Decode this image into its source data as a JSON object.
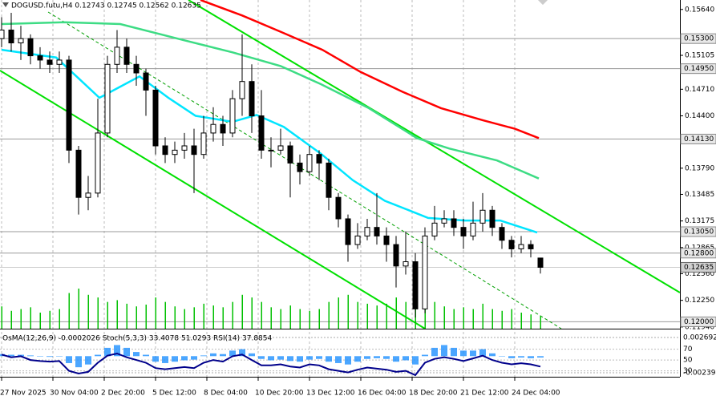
{
  "chart_data": {
    "type": "candlestick",
    "title": "DOGUSD.futu,H4  0.12743 0.12745 0.12562 0.12635",
    "x": [
      0,
      3,
      6,
      9,
      12,
      15,
      18,
      21,
      24,
      27,
      30,
      33,
      36,
      39,
      42,
      45,
      48,
      51,
      54,
      57,
      60,
      63,
      66,
      69,
      72,
      75,
      78,
      81,
      84,
      87,
      90,
      93,
      96,
      99,
      102,
      105,
      108,
      111,
      114,
      117,
      120,
      123,
      126,
      129,
      132,
      135,
      138,
      141,
      144,
      147,
      150,
      153,
      156,
      159,
      162,
      165,
      168
    ],
    "open": [
      0.153,
      0.154,
      0.1525,
      0.153,
      0.151,
      0.1505,
      0.15,
      0.1505,
      0.14,
      0.1345,
      0.135,
      0.142,
      0.15,
      0.152,
      0.15,
      0.149,
      0.147,
      0.1405,
      0.1395,
      0.14,
      0.1405,
      0.1395,
      0.142,
      0.143,
      0.142,
      0.146,
      0.148,
      0.144,
      0.14,
      0.14,
      0.1405,
      0.1385,
      0.1375,
      0.1395,
      0.1385,
      0.1345,
      0.132,
      0.129,
      0.13,
      0.131,
      0.13,
      0.129,
      0.1265,
      0.127,
      0.1215,
      0.13,
      0.1315,
      0.132,
      0.131,
      0.13,
      0.1315,
      0.133,
      0.131,
      0.1295,
      0.1285,
      0.129,
      0.12743
    ],
    "high": [
      0.1555,
      0.156,
      0.1545,
      0.1535,
      0.152,
      0.1515,
      0.1515,
      0.151,
      0.1405,
      0.137,
      0.146,
      0.151,
      0.154,
      0.153,
      0.151,
      0.1495,
      0.1475,
      0.1415,
      0.141,
      0.142,
      0.1425,
      0.144,
      0.145,
      0.144,
      0.147,
      0.1535,
      0.15,
      0.147,
      0.1415,
      0.1425,
      0.141,
      0.1395,
      0.1405,
      0.14,
      0.139,
      0.135,
      0.1325,
      0.1315,
      0.132,
      0.135,
      0.131,
      0.13,
      0.1305,
      0.128,
      0.131,
      0.1335,
      0.133,
      0.133,
      0.132,
      0.134,
      0.135,
      0.1335,
      0.1315,
      0.13,
      0.13,
      0.1295,
      0.12745
    ],
    "low": [
      0.152,
      0.1515,
      0.1505,
      0.15,
      0.1495,
      0.149,
      0.149,
      0.1385,
      0.1325,
      0.133,
      0.1345,
      0.1415,
      0.149,
      0.149,
      0.1475,
      0.144,
      0.1395,
      0.1385,
      0.1385,
      0.139,
      0.135,
      0.139,
      0.141,
      0.1405,
      0.1415,
      0.144,
      0.142,
      0.139,
      0.138,
      0.1395,
      0.1345,
      0.136,
      0.137,
      0.1365,
      0.133,
      0.131,
      0.127,
      0.1285,
      0.1295,
      0.129,
      0.127,
      0.124,
      0.1255,
      0.1205,
      0.121,
      0.1295,
      0.131,
      0.13,
      0.1285,
      0.1295,
      0.1305,
      0.13,
      0.1285,
      0.1275,
      0.128,
      0.1275,
      0.12562
    ],
    "close": [
      0.154,
      0.1525,
      0.153,
      0.151,
      0.1505,
      0.15,
      0.1505,
      0.14,
      0.1345,
      0.135,
      0.142,
      0.15,
      0.152,
      0.15,
      0.149,
      0.147,
      0.1405,
      0.1395,
      0.14,
      0.1405,
      0.1395,
      0.142,
      0.143,
      0.142,
      0.146,
      0.148,
      0.144,
      0.14,
      0.14,
      0.1405,
      0.1385,
      0.1375,
      0.1395,
      0.1385,
      0.1345,
      0.132,
      0.129,
      0.13,
      0.131,
      0.13,
      0.129,
      0.1265,
      0.127,
      0.1215,
      0.13,
      0.1315,
      0.132,
      0.131,
      0.13,
      0.1315,
      0.133,
      0.131,
      0.1295,
      0.1285,
      0.129,
      0.1285,
      0.12635
    ],
    "volume": [
      25,
      20,
      22,
      24,
      18,
      20,
      22,
      40,
      45,
      38,
      35,
      30,
      32,
      28,
      25,
      27,
      35,
      30,
      25,
      22,
      24,
      28,
      26,
      24,
      30,
      38,
      35,
      30,
      24,
      22,
      26,
      22,
      20,
      22,
      30,
      35,
      38,
      30,
      28,
      26,
      28,
      35,
      30,
      45,
      40,
      30,
      25,
      22,
      24,
      22,
      28,
      22,
      20,
      22,
      18,
      16,
      14
    ],
    "volume_color": "#00c000",
    "candle_up": "#ffffff",
    "candle_down": "#000000",
    "series": [
      {
        "color": "#ff0000",
        "x": [
          62,
          75,
          87,
          100,
          112,
          125,
          137,
          150,
          160,
          167.5
        ],
        "values": [
          0.1575,
          0.1557,
          0.1538,
          0.1517,
          0.1491,
          0.1468,
          0.1449,
          0.1435,
          0.1425,
          0.1414
        ]
      },
      {
        "color": "#3ddc84",
        "x": [
          0,
          19.5,
          37,
          57,
          72,
          87,
          99.5,
          114.5,
          129.5,
          139.5,
          154.5,
          167.5
        ],
        "values": [
          0.1547,
          0.1549,
          0.1547,
          0.1528,
          0.1514,
          0.1498,
          0.1477,
          0.1449,
          0.1414,
          0.1402,
          0.1388,
          0.1367
        ]
      },
      {
        "color": "#00e5ff",
        "x": [
          0,
          17,
          24.5,
          30.5,
          37,
          43,
          52,
          60.5,
          72,
          79.5,
          88,
          99.5,
          109.5,
          119.5,
          127,
          133,
          144.5,
          155.5,
          167
        ],
        "values": [
          0.1517,
          0.1508,
          0.1482,
          0.1461,
          0.1474,
          0.1486,
          0.1461,
          0.144,
          0.1433,
          0.1441,
          0.1427,
          0.1396,
          0.1365,
          0.1341,
          0.133,
          0.1321,
          0.1318,
          0.1318,
          0.1304
        ]
      }
    ],
    "xlim": [
      0,
      212
    ],
    "ylim": [
      0.1192,
      0.1575
    ],
    "yticks": [
      {
        "value": 0.1564,
        "label": "0.15640"
      },
      {
        "value": 0.15105,
        "label": "0.15105"
      },
      {
        "value": 0.1471,
        "label": "0.14710"
      },
      {
        "value": 0.144,
        "label": "0.14400"
      },
      {
        "value": 0.1379,
        "label": "0.13790"
      },
      {
        "value": 0.13485,
        "label": "0.13485"
      },
      {
        "value": 0.13175,
        "label": "0.13175"
      },
      {
        "value": 0.12865,
        "label": "0.12865"
      },
      {
        "value": 0.1256,
        "label": "0.12560"
      },
      {
        "value": 0.1225,
        "label": "0.12250"
      },
      {
        "value": 0.1194,
        "label": "0.11940"
      }
    ],
    "levels": [
      {
        "value": 0.153,
        "label": "0.15300"
      },
      {
        "value": 0.1495,
        "label": "0.14950"
      },
      {
        "value": 0.1413,
        "label": "0.14130"
      },
      {
        "value": 0.1305,
        "label": "0.13050"
      },
      {
        "value": 0.128,
        "label": "0.12800"
      },
      {
        "value": 0.12,
        "label": "0.12000"
      }
    ],
    "current": {
      "value": 0.12635,
      "label": "0.12635"
    },
    "xticks": [
      {
        "value": 0,
        "label": "27 Nov 2025"
      },
      {
        "value": 16,
        "label": "30 Nov 04:00"
      },
      {
        "value": 32,
        "label": "2 Dec 20:00"
      },
      {
        "value": 48,
        "label": "5 Dec 12:00"
      },
      {
        "value": 64,
        "label": "8 Dec 04:00"
      },
      {
        "value": 80,
        "label": "10 Dec 20:00"
      },
      {
        "value": 96,
        "label": "13 Dec 12:00"
      },
      {
        "value": 112,
        "label": "16 Dec 04:00"
      },
      {
        "value": 128,
        "label": "18 Dec 20:00"
      },
      {
        "value": 144,
        "label": "21 Dec 12:00"
      },
      {
        "value": 160,
        "label": "24 Dec 04:00"
      }
    ],
    "indicator": {
      "label": "OsMA(12,26,9) -0.0002026 Stoch(5,3,3) 33.4078 51.0293 RSI(14) 37.8854",
      "osma": [
        0.0003,
        0.0002,
        0.0002,
        0.0001,
        0,
        -0.0001,
        0,
        -0.001,
        -0.0016,
        -0.0012,
        0.0002,
        0.0012,
        0.0016,
        0.0012,
        0.0006,
        0.0002,
        -0.0008,
        -0.001,
        -0.0008,
        -0.0006,
        -0.0005,
        0.0001,
        0.0004,
        0.0003,
        0.0008,
        0.001,
        0.0004,
        -0.0004,
        -0.0006,
        -0.0005,
        -0.0007,
        -0.0008,
        -0.0005,
        -0.0004,
        -0.0008,
        -0.001,
        -0.0012,
        -0.0008,
        -0.0004,
        -0.0003,
        -0.0004,
        -0.0008,
        -0.0006,
        -0.0012,
        0.0002,
        0.0012,
        0.0016,
        0.0012,
        0.0008,
        0.0008,
        0.001,
        0.0004,
        0,
        -0.0003,
        -0.0002,
        -0.0003,
        -0.0002026
      ],
      "osma_color": "#1e90ff",
      "rsi": [
        60,
        55,
        57,
        50,
        48,
        47,
        48,
        30,
        25,
        28,
        45,
        58,
        62,
        55,
        50,
        45,
        35,
        33,
        35,
        37,
        35,
        45,
        50,
        47,
        57,
        60,
        50,
        40,
        40,
        42,
        38,
        36,
        42,
        40,
        33,
        30,
        27,
        32,
        36,
        34,
        32,
        28,
        30,
        22,
        45,
        52,
        55,
        52,
        48,
        53,
        58,
        50,
        45,
        42,
        44,
        42,
        37.8854
      ],
      "rsi_color": "#00008b",
      "ylim": [
        -0.00297,
        0.00373
      ],
      "yticks": [
        0.002692,
        -0.002394
      ],
      "rsi_lim": [
        19,
        105
      ],
      "rsi_ticks": [
        70,
        50,
        30
      ]
    }
  }
}
